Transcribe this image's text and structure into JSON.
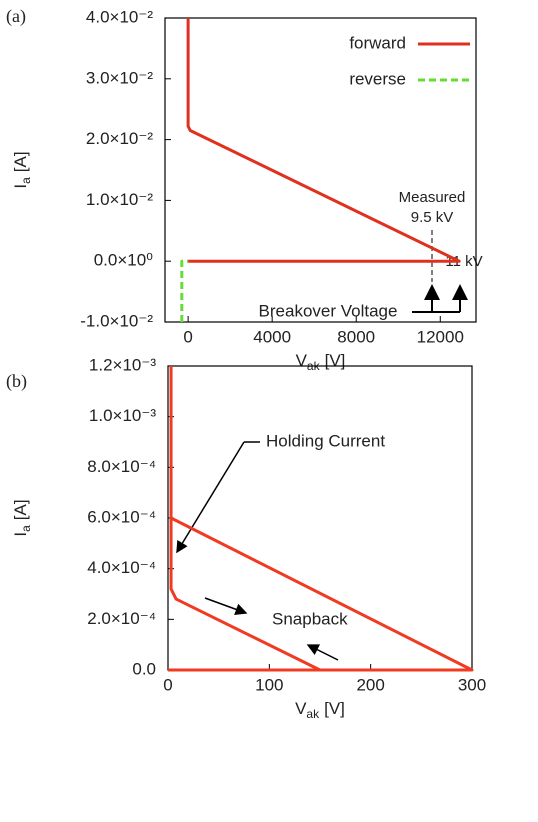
{
  "chart_data": [
    {
      "type": "line",
      "panel": "(a)",
      "xlabel": {
        "main": "V",
        "sub": "ak",
        "unit": "[V]"
      },
      "ylabel": {
        "main": "I",
        "sub": "a",
        "unit": "[A]"
      },
      "xlim": [
        -1100,
        13700
      ],
      "xticks": [
        0,
        4000,
        8000,
        12000
      ],
      "ylim": [
        -0.01,
        0.04
      ],
      "yticks": [
        {
          "value": -0.01,
          "label": "-1.0×10⁻²"
        },
        {
          "value": 0,
          "label": "0.0×10⁰"
        },
        {
          "value": 0.01,
          "label": "1.0×10⁻²"
        },
        {
          "value": 0.02,
          "label": "2.0×10⁻²"
        },
        {
          "value": 0.03,
          "label": "3.0×10⁻²"
        },
        {
          "value": 0.04,
          "label": "4.0×10⁻²"
        }
      ],
      "legend": "upper right",
      "series": [
        {
          "name": "forward",
          "color": "#e0301e",
          "dashed": false,
          "x": [
            0,
            12900,
            100,
            0,
            0
          ],
          "values": [
            0,
            0,
            0.0215,
            0.0222,
            0.04
          ]
        },
        {
          "name": "reverse",
          "color": "#66dd33",
          "dashed": true,
          "x": [
            -300,
            -300,
            0
          ],
          "values": [
            -0.01,
            0,
            0
          ]
        }
      ],
      "annotations": [
        "Measured",
        "9.5 kV",
        "11 kV",
        "Breakover Voltage"
      ]
    },
    {
      "type": "line",
      "panel": "(b)",
      "xlabel": {
        "main": "V",
        "sub": "ak",
        "unit": "[V]"
      },
      "ylabel": {
        "main": "I",
        "sub": "a",
        "unit": "[A]"
      },
      "xlim": [
        0,
        300
      ],
      "xticks": [
        0,
        100,
        200,
        300
      ],
      "ylim": [
        0,
        0.0012
      ],
      "yticks": [
        {
          "value": 0,
          "label": "0.0"
        },
        {
          "value": 0.0002,
          "label": "2.0×10⁻⁴"
        },
        {
          "value": 0.0004,
          "label": "4.0×10⁻⁴"
        },
        {
          "value": 0.0006,
          "label": "6.0×10⁻⁴"
        },
        {
          "value": 0.0008,
          "label": "8.0×10⁻⁴"
        },
        {
          "value": 0.001,
          "label": "1.0×10⁻³"
        },
        {
          "value": 0.0012,
          "label": "1.2×10⁻³"
        }
      ],
      "series": [
        {
          "color": "#f03a22",
          "dashed": false,
          "x": [
            0,
            300,
            3,
            3,
            null,
            3,
            3,
            8,
            150
          ],
          "values": [
            0,
            0,
            0.0006,
            0.0012,
            null,
            0.0006,
            0.00032,
            0.00028,
            0
          ]
        }
      ],
      "annotations": [
        "Holding Current",
        "Snapback"
      ]
    }
  ]
}
